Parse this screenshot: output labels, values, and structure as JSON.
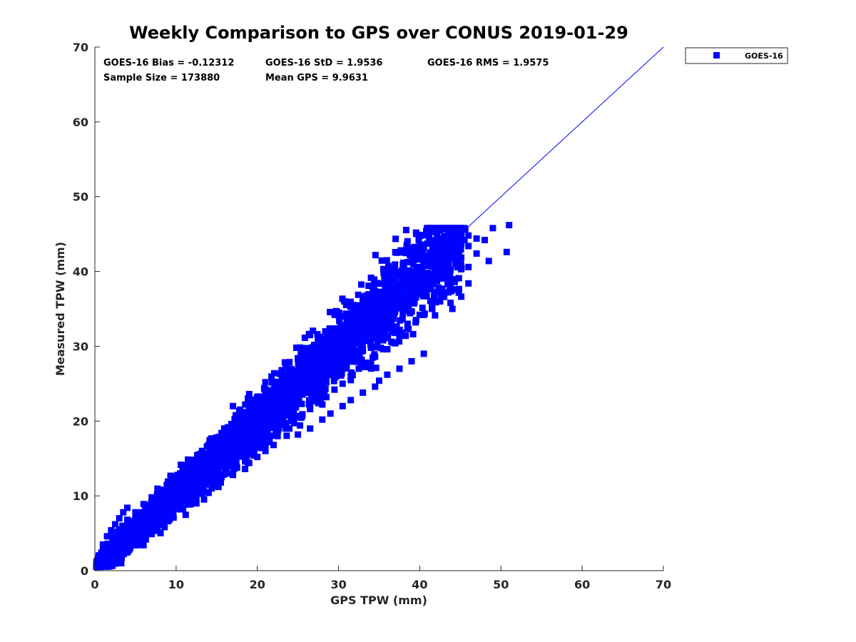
{
  "chart_data": {
    "type": "scatter",
    "title": "Weekly Comparison to GPS over CONUS 2019-01-29",
    "xlabel": "GPS TPW (mm)",
    "ylabel": "Measured TPW (mm)",
    "xlim": [
      0,
      70
    ],
    "ylim": [
      0,
      70
    ],
    "xticks": [
      "0",
      "10",
      "20",
      "30",
      "40",
      "50",
      "60",
      "70"
    ],
    "yticks": [
      "0",
      "10",
      "20",
      "30",
      "40",
      "50",
      "60",
      "70"
    ],
    "grid": false,
    "legend": {
      "position": "outside-top-right",
      "entries": [
        "GOES-16"
      ]
    },
    "stats": {
      "bias": "GOES-16 Bias = -0.12312",
      "std": "GOES-16 StD = 1.9536",
      "rms": "GOES-16 RMS = 1.9575",
      "sample_size": "Sample Size = 173880",
      "mean_gps": "Mean GPS = 9.9631"
    },
    "reference_line": {
      "x": [
        0,
        70
      ],
      "y": [
        0,
        70
      ]
    },
    "series": [
      {
        "name": "GOES-16",
        "color": "#0000ff",
        "marker": "square",
        "x": [
          0.3,
          0.5,
          0.8,
          1.0,
          1.2,
          1.5,
          1.8,
          2.0,
          2.3,
          2.5,
          2.8,
          3.0,
          3.3,
          3.6,
          4.0,
          4.3,
          4.7,
          5.0,
          5.4,
          5.8,
          6.2,
          6.6,
          7.0,
          7.5,
          8.0,
          8.5,
          9.0,
          9.5,
          10.0,
          10.5,
          11.0,
          11.5,
          12.0,
          12.6,
          13.2,
          13.8,
          14.4,
          15.0,
          15.6,
          16.2,
          16.8,
          17.4,
          18.0,
          18.6,
          19.2,
          19.8,
          20.4,
          21.0,
          21.6,
          22.2,
          22.8,
          23.4,
          24.0,
          24.6,
          25.2,
          25.8,
          26.4,
          27.0,
          27.6,
          28.2,
          28.8,
          29.4,
          30.0,
          30.6,
          31.2,
          31.8,
          32.4,
          33.0,
          33.6,
          34.2,
          34.8,
          35.4,
          36.0,
          36.6,
          37.2,
          37.8,
          38.4,
          39.0,
          39.6,
          40.2,
          40.8,
          41.4,
          42.0,
          42.6,
          43.2,
          43.8,
          44.4,
          45.0,
          45.6,
          1.0,
          2.0,
          3.0,
          4.0,
          5.0,
          6.0,
          7.0,
          8.0,
          9.0,
          10.0,
          11.0,
          12.0,
          13.0,
          14.0,
          15.0,
          16.0,
          17.0,
          18.0,
          19.0,
          20.0,
          21.0,
          22.0,
          23.0,
          24.0,
          25.0,
          26.0,
          27.0,
          28.0,
          29.0,
          30.0,
          31.0,
          32.0,
          33.0,
          34.0,
          35.0,
          36.0,
          37.0,
          38.0,
          39.0,
          40.0,
          41.0,
          42.0,
          1.5,
          2.5,
          3.5,
          4.5,
          5.5,
          6.5,
          7.5,
          8.5,
          9.5,
          10.5,
          11.5,
          12.5,
          13.5,
          14.5,
          15.5,
          16.5,
          17.5,
          18.5,
          19.5,
          20.5,
          21.5,
          22.5,
          23.5,
          24.5,
          25.5,
          26.5,
          27.5,
          28.5,
          29.5,
          30.5,
          31.5,
          32.5,
          33.5,
          34.5,
          35.5,
          36.5,
          37.5,
          38.5,
          39.5,
          40.5,
          41.5,
          42.5,
          43.5,
          0.5,
          1.0,
          1.5,
          2.0,
          2.5,
          3.0,
          3.5,
          4.0,
          0.2,
          0.4,
          0.6,
          0.8,
          1.2,
          1.6,
          2.2,
          2.8,
          3.4,
          12.5,
          14.0,
          15.5,
          17.0,
          18.5,
          19.0,
          20.0,
          21.0,
          22.0,
          25.0,
          26.5,
          28.0,
          29.0,
          30.5,
          31.5,
          33.0,
          34.5,
          35.0,
          36.0,
          37.5,
          39.0,
          40.5,
          14.0,
          16.0,
          18.0,
          20.0,
          21.5,
          23.0,
          24.5,
          26.0,
          27.5,
          29.0,
          30.5,
          32.0,
          33.5,
          35.0,
          36.5,
          38.0,
          13.5,
          15.0,
          16.5,
          18.0,
          19.5,
          20.5,
          22.0,
          23.5,
          25.0,
          26.5,
          28.0,
          29.5,
          31.0,
          32.5,
          34.0,
          35.5,
          37.0,
          38.5,
          40.0,
          41.5,
          43.0,
          44.5,
          46.0,
          24.0,
          26.0,
          28.0,
          30.0,
          32.0,
          34.0,
          36.0,
          38.0,
          40.0,
          42.0,
          44.0,
          46.0,
          48.0,
          17.0,
          19.0,
          21.0,
          23.0,
          25.0,
          27.0,
          29.0,
          31.0,
          33.0,
          35.0,
          37.0,
          39.0,
          41.0,
          43.0,
          45.0,
          47.0,
          49.0,
          51.0,
          50.7,
          48.5,
          47.0,
          46.0,
          45.5,
          44.0,
          42.5,
          41.0,
          43.5,
          45.5,
          42.0,
          44.5,
          40.0,
          38.0,
          33.5,
          35.0,
          36.5,
          38.5,
          39.5,
          40.5,
          41.5,
          42.5,
          43.5,
          44.5,
          34.0,
          36.0,
          37.0,
          32.0,
          31.0,
          30.0,
          29.0,
          28.0,
          27.0,
          26.0,
          25.0,
          24.0,
          23.0,
          22.0,
          21.0,
          20.0,
          19.0,
          18.0,
          17.0,
          16.0,
          15.0,
          14.0,
          13.0,
          12.0,
          11.0,
          10.0,
          9.0,
          8.0,
          7.0,
          6.0,
          5.0,
          4.0,
          3.0,
          2.0,
          1.0,
          22.0,
          24.0,
          26.0,
          28.0,
          30.0,
          32.0,
          34.0,
          36.0,
          38.0,
          40.0,
          27.0,
          29.0,
          31.0,
          33.0,
          35.0,
          37.0,
          39.0,
          41.0,
          43.0,
          32.0,
          34.0,
          36.0,
          38.0,
          40.0,
          42.0,
          44.0,
          46.0,
          19.0,
          20.0,
          17.5,
          16.5,
          15.0,
          13.5,
          12.0,
          11.0,
          10.0,
          9.0,
          8.0,
          7.0,
          6.0,
          5.0,
          4.0,
          3.0,
          2.0,
          30.5,
          32.5,
          34.5,
          36.5,
          38.5,
          40.5,
          42.5,
          44.5,
          26.5,
          28.5,
          30.5,
          32.5,
          34.5,
          36.5,
          38.5,
          29.5,
          33.0,
          37.0,
          23.5,
          28.5,
          31.5,
          27.5,
          30.0,
          24.5,
          18.5,
          21.0,
          16.0,
          13.0,
          14.5,
          11.5,
          10.5,
          9.5,
          8.5,
          7.5,
          6.5,
          5.5,
          4.5,
          3.5,
          2.5,
          1.5
        ],
        "y": [
          0.8,
          1.2,
          1.8,
          2.2,
          2.4,
          2.8,
          3.2,
          3.5,
          3.8,
          4.2,
          4.5,
          4.8,
          5.2,
          5.5,
          5.8,
          6.2,
          6.6,
          7.0,
          7.3,
          7.8,
          8.2,
          8.7,
          9.2,
          9.6,
          10.2,
          10.8,
          11.4,
          12.0,
          12.4,
          13.0,
          13.5,
          14.2,
          14.8,
          15.4,
          16.0,
          16.6,
          17.2,
          17.8,
          18.4,
          19.0,
          19.6,
          20.2,
          20.8,
          21.2,
          21.8,
          22.4,
          23.0,
          23.6,
          24.0,
          24.6,
          25.2,
          25.6,
          26.2,
          26.6,
          27.2,
          27.6,
          28.2,
          28.6,
          29.2,
          29.6,
          30.2,
          30.6,
          31.2,
          31.6,
          32.2,
          32.6,
          33.2,
          33.6,
          34.2,
          34.6,
          35.2,
          35.8,
          36.4,
          37.0,
          37.6,
          38.2,
          38.8,
          39.4,
          40.0,
          40.4,
          41.0,
          41.6,
          42.0,
          42.6,
          43.0,
          43.4,
          44.0,
          44.6,
          45.6,
          3.2,
          4.6,
          5.5,
          6.8,
          7.8,
          8.9,
          9.8,
          10.8,
          11.9,
          12.6,
          13.6,
          14.8,
          15.6,
          16.8,
          17.8,
          18.6,
          19.6,
          20.4,
          21.6,
          22.4,
          23.6,
          24.2,
          25.2,
          26.0,
          26.8,
          27.8,
          28.4,
          29.4,
          30.2,
          31.0,
          31.8,
          32.6,
          33.4,
          34.2,
          35.0,
          35.8,
          36.6,
          37.4,
          38.2,
          39.0,
          39.8,
          40.6,
          1.0,
          1.8,
          2.6,
          3.4,
          4.2,
          5.0,
          5.8,
          6.6,
          7.4,
          8.2,
          9.0,
          9.8,
          10.6,
          11.4,
          12.2,
          13.0,
          13.8,
          14.6,
          15.6,
          16.4,
          17.2,
          18.0,
          19.0,
          19.8,
          20.6,
          21.6,
          22.4,
          23.2,
          24.2,
          25.0,
          26.0,
          27.0,
          27.8,
          28.6,
          29.6,
          30.6,
          31.4,
          32.4,
          33.2,
          34.2,
          35.0,
          36.0,
          37.2,
          2.0,
          3.5,
          4.6,
          5.4,
          6.2,
          7.0,
          7.8,
          8.4,
          0.5,
          1.0,
          1.6,
          2.4,
          3.0,
          3.6,
          4.4,
          5.2,
          6.0,
          9.0,
          10.4,
          11.8,
          12.8,
          13.6,
          14.4,
          15.2,
          16.0,
          16.8,
          18.2,
          19.0,
          20.2,
          21.0,
          22.0,
          22.8,
          23.8,
          24.6,
          25.4,
          26.2,
          27.0,
          28.0,
          29.0,
          16.6,
          18.6,
          20.6,
          22.4,
          23.6,
          24.8,
          26.0,
          27.2,
          28.4,
          29.6,
          30.8,
          31.8,
          33.0,
          34.0,
          35.2,
          36.2,
          13.0,
          14.8,
          16.2,
          17.4,
          18.8,
          19.6,
          20.6,
          21.8,
          23.0,
          24.0,
          25.2,
          26.4,
          27.4,
          28.6,
          29.8,
          30.8,
          31.8,
          33.0,
          34.2,
          35.4,
          36.6,
          37.6,
          38.4,
          27.0,
          28.6,
          30.2,
          31.6,
          33.2,
          34.6,
          36.2,
          37.6,
          39.2,
          40.6,
          42.0,
          43.4,
          44.2,
          22.0,
          23.6,
          25.2,
          26.8,
          28.4,
          30.0,
          31.6,
          33.2,
          34.8,
          36.4,
          38.0,
          39.6,
          41.2,
          42.4,
          43.2,
          44.4,
          45.8,
          46.2,
          42.6,
          41.4,
          42.4,
          40.6,
          44.2,
          44.8,
          45.6,
          45.6,
          45.6,
          45.8,
          39.4,
          43.8,
          38.0,
          37.2,
          30.8,
          32.4,
          34.0,
          35.6,
          36.8,
          37.8,
          38.8,
          39.8,
          40.6,
          41.2,
          27.8,
          29.6,
          30.4,
          33.0,
          32.2,
          31.4,
          30.2,
          29.0,
          27.8,
          26.6,
          25.4,
          24.4,
          23.2,
          22.0,
          21.0,
          19.8,
          18.6,
          17.6,
          16.6,
          15.6,
          14.4,
          13.4,
          12.4,
          11.4,
          10.4,
          9.6,
          8.8,
          7.8,
          6.8,
          5.8,
          4.8,
          4.0,
          3.0,
          2.2,
          1.4,
          23.8,
          25.4,
          27.0,
          28.4,
          30.0,
          31.4,
          33.0,
          34.4,
          36.0,
          37.4,
          27.2,
          28.8,
          30.4,
          31.8,
          33.4,
          35.0,
          36.4,
          37.8,
          39.4,
          35.0,
          36.4,
          37.8,
          39.2,
          40.6,
          42.0,
          43.2,
          44.8,
          18.8,
          20.2,
          19.4,
          16.8,
          15.2,
          14.0,
          13.0,
          11.6,
          10.4,
          9.6,
          8.6,
          7.8,
          6.8,
          5.8,
          5.0,
          4.0,
          3.0,
          32.8,
          34.6,
          36.4,
          38.0,
          39.6,
          41.0,
          42.8,
          44.0,
          29.2,
          30.8,
          32.4,
          34.0,
          35.6,
          37.0,
          38.4,
          27.6,
          29.4,
          31.8,
          22.8,
          27.2,
          29.8,
          24.6,
          26.4,
          20.4,
          15.8,
          16.8,
          13.6,
          11.0,
          12.2,
          9.8,
          9.0,
          8.0,
          7.2,
          6.4,
          5.6,
          4.8,
          4.0,
          3.2,
          2.6,
          1.8
        ]
      }
    ]
  }
}
